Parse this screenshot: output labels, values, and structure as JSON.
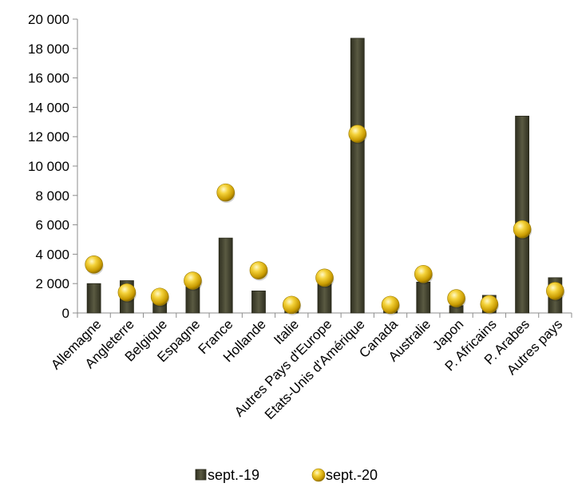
{
  "chart_data": {
    "type": "bar",
    "categories": [
      "Allemagne",
      "Angleterre",
      "Belgique",
      "Espagne",
      "France",
      "Hollande",
      "Italie",
      "Autres Pays d'Europe",
      "Etats-Unis d'Amérique",
      "Canada",
      "Australie",
      "Japon",
      "P. Africains",
      "P. Arabes",
      "Autres pays"
    ],
    "series": [
      {
        "name": "sept.-19",
        "type": "bar",
        "color": "#4a4a35",
        "values": [
          2000,
          2200,
          900,
          2000,
          5100,
          1500,
          300,
          2000,
          18700,
          250,
          2100,
          500,
          1200,
          13400,
          2400
        ]
      },
      {
        "name": "sept.-20",
        "type": "scatter",
        "marker": "yellow-sphere",
        "color": "#e6b800",
        "values": [
          3300,
          1400,
          1100,
          2200,
          8200,
          2900,
          550,
          2400,
          12200,
          550,
          2650,
          1000,
          600,
          5700,
          1500
        ]
      }
    ],
    "ylim": [
      0,
      20000
    ],
    "yticks": [
      "0",
      "2 000",
      "4 000",
      "6 000",
      "8 000",
      "10 000",
      "12 000",
      "14 000",
      "16 000",
      "18 000",
      "20 000"
    ],
    "grid": false,
    "legend_position": "bottom",
    "title": "",
    "xlabel": "",
    "ylabel": ""
  }
}
